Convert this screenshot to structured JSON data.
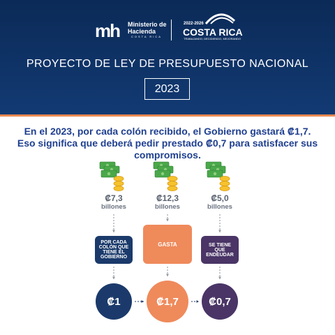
{
  "header": {
    "ministry_logo": "mh",
    "ministry_name": "Ministerio de Hacienda",
    "ministry_country": "COSTA RICA",
    "gov_years": "2022-2026",
    "gov_country": "COSTA RICA",
    "gov_slogan": "TRABAJANDO, DECIDIENDO, MEJORANDO",
    "title": "PROYECTO DE LEY DE PRESUPUESTO NACIONAL",
    "year": "2023"
  },
  "intro": "En el 2023, por cada colón recibido, el Gobierno gastará ₡1,7. Eso significa que deberá pedir prestado ₡0,7 para satisfacer sus compromisos.",
  "columns": [
    {
      "amount": "₡7,3",
      "unit": "billones",
      "label": "POR CADA COLÓN QUE TIENE EL GOBIERNO",
      "ratio": "₡1"
    },
    {
      "amount": "₡12,3",
      "unit": "billones",
      "label": "GASTA",
      "ratio": "₡1,7"
    },
    {
      "amount": "₡5,0",
      "unit": "billones",
      "label": "SE TIENE QUE ENDEUDAR",
      "ratio": "₡0,7"
    }
  ]
}
